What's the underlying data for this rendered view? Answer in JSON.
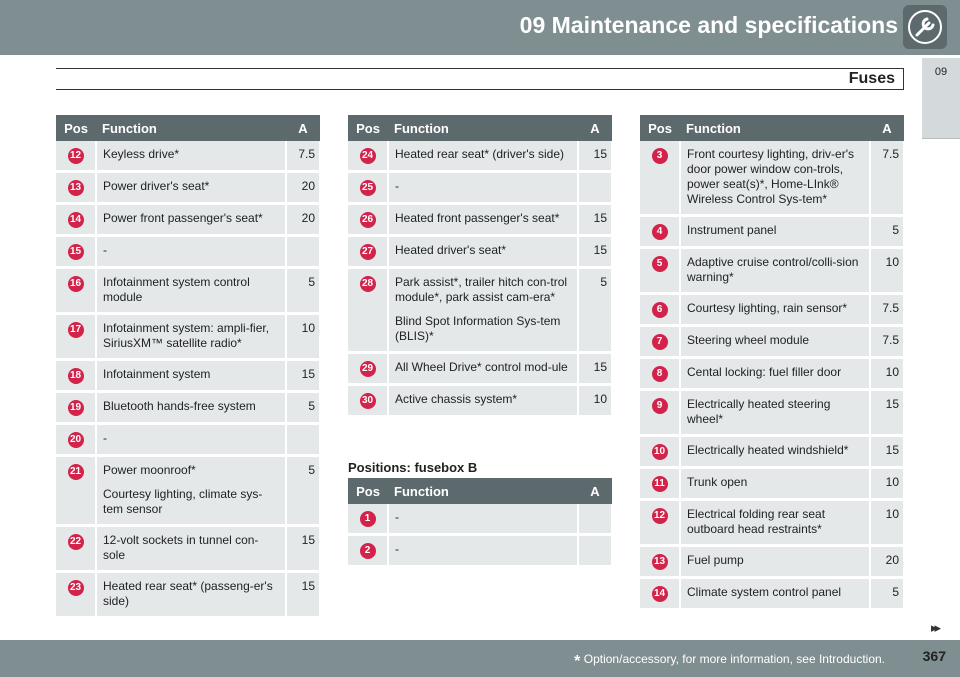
{
  "header": {
    "title": "09 Maintenance and specifications"
  },
  "section": {
    "title": "Fuses",
    "chapter_tab": "09"
  },
  "col_headers": {
    "pos": "Pos",
    "function": "Function",
    "amp": "A"
  },
  "table1": [
    {
      "pos": "12",
      "function": "Keyless drive*",
      "amp": "7.5"
    },
    {
      "pos": "13",
      "function": "Power driver's seat*",
      "amp": "20"
    },
    {
      "pos": "14",
      "function": "Power front passenger's seat*",
      "amp": "20"
    },
    {
      "pos": "15",
      "function": "-",
      "amp": ""
    },
    {
      "pos": "16",
      "function": "Infotainment system control module",
      "amp": "5"
    },
    {
      "pos": "17",
      "function": "Infotainment system: ampli-fier, SiriusXM™ satellite radio*",
      "amp": "10"
    },
    {
      "pos": "18",
      "function": "Infotainment system",
      "amp": "15"
    },
    {
      "pos": "19",
      "function": "Bluetooth hands-free system",
      "amp": "5"
    },
    {
      "pos": "20",
      "function": "-",
      "amp": ""
    },
    {
      "pos": "21",
      "function": "Power moonroof*",
      "function2": "Courtesy lighting, climate sys-tem sensor",
      "amp": "5"
    },
    {
      "pos": "22",
      "function": "12-volt sockets in tunnel con-sole",
      "amp": "15"
    },
    {
      "pos": "23",
      "function": "Heated rear seat* (passeng-er's side)",
      "amp": "15"
    }
  ],
  "table2": [
    {
      "pos": "24",
      "function": "Heated rear seat* (driver's side)",
      "amp": "15"
    },
    {
      "pos": "25",
      "function": "-",
      "amp": ""
    },
    {
      "pos": "26",
      "function": "Heated front passenger's seat*",
      "amp": "15"
    },
    {
      "pos": "27",
      "function": "Heated driver's seat*",
      "amp": "15"
    },
    {
      "pos": "28",
      "function": "Park assist*, trailer hitch con-trol module*, park assist cam-era*",
      "function2": "Blind Spot Information Sys-tem (BLIS)*",
      "amp": "5"
    },
    {
      "pos": "29",
      "function": "All Wheel Drive* control mod-ule",
      "amp": "15"
    },
    {
      "pos": "30",
      "function": "Active chassis system*",
      "amp": "10"
    }
  ],
  "fusebox_b": {
    "title": "Positions: fusebox B",
    "rows": [
      {
        "pos": "1",
        "function": "-",
        "amp": ""
      },
      {
        "pos": "2",
        "function": "-",
        "amp": ""
      }
    ]
  },
  "table3": [
    {
      "pos": "3",
      "function": "Front courtesy lighting, driv-er's door power window con-trols, power seat(s)*, Home-LInk® Wireless Control Sys-tem*",
      "amp": "7.5"
    },
    {
      "pos": "4",
      "function": "Instrument panel",
      "amp": "5"
    },
    {
      "pos": "5",
      "function": "Adaptive cruise control/colli-sion warning*",
      "amp": "10"
    },
    {
      "pos": "6",
      "function": "Courtesy lighting, rain sensor*",
      "amp": "7.5"
    },
    {
      "pos": "7",
      "function": "Steering wheel module",
      "amp": "7.5"
    },
    {
      "pos": "8",
      "function": "Cental locking: fuel filler door",
      "amp": "10"
    },
    {
      "pos": "9",
      "function": "Electrically heated steering wheel*",
      "amp": "15"
    },
    {
      "pos": "10",
      "function": "Electrically heated windshield*",
      "amp": "15"
    },
    {
      "pos": "11",
      "function": "Trunk open",
      "amp": "10"
    },
    {
      "pos": "12",
      "function": "Electrical folding rear seat outboard head restraints*",
      "amp": "10"
    },
    {
      "pos": "13",
      "function": "Fuel pump",
      "amp": "20"
    },
    {
      "pos": "14",
      "function": "Climate system control panel",
      "amp": "5"
    }
  ],
  "footer": {
    "star": "*",
    "note": "Option/accessory, for more information, see Introduction.",
    "page": "367",
    "next_arrow": "▸▸"
  },
  "icons": {
    "header": "wrench-icon"
  },
  "colors": {
    "header_bg": "#7f8e91",
    "table_header_bg": "#5d6a6d",
    "cell_bg": "#e4e8e9",
    "badge": "#d2234a"
  }
}
